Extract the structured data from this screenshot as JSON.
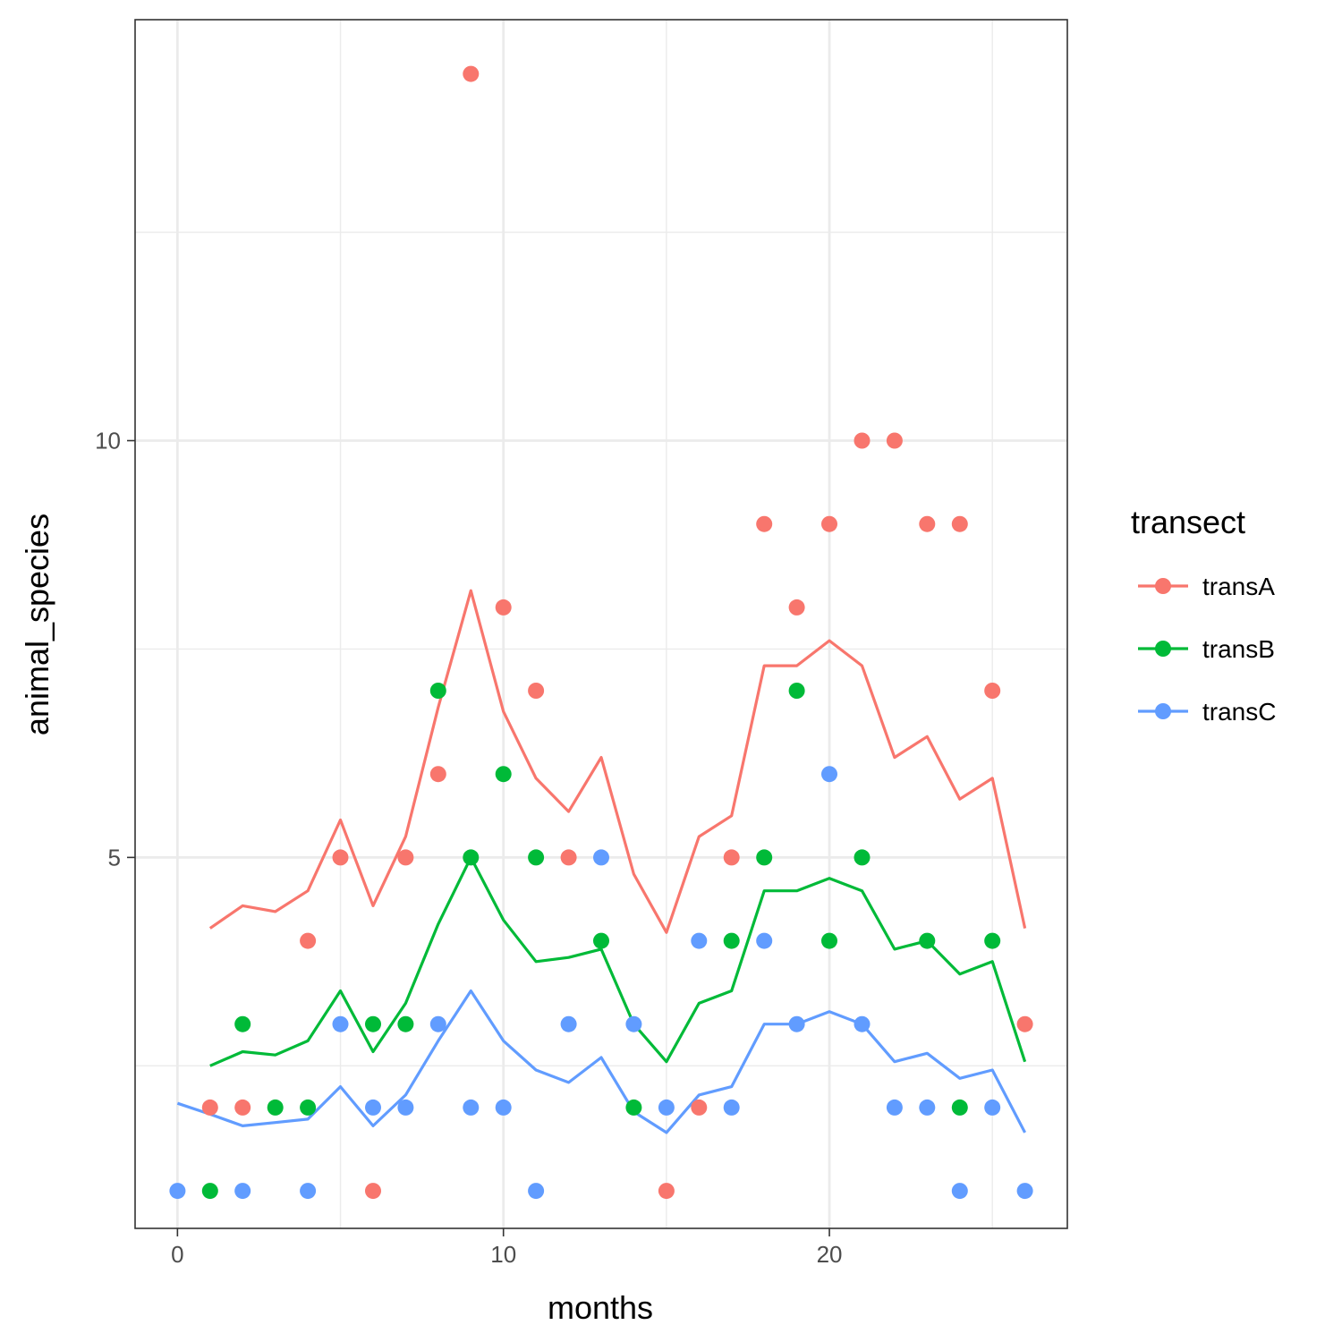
{
  "chart_data": {
    "type": "scatter",
    "title": "",
    "xlabel": "months",
    "ylabel": "animal_species",
    "xlim": [
      -1.3,
      27.3
    ],
    "ylim": [
      0.55,
      15.05
    ],
    "x_ticks": [
      0,
      10,
      20
    ],
    "x_tick_labels": [
      "0",
      "10",
      "20"
    ],
    "y_ticks": [
      5,
      10
    ],
    "y_tick_labels": [
      "5",
      "10"
    ],
    "x_minor": [
      5,
      15,
      25
    ],
    "y_minor": [
      2.5,
      7.5,
      12.5
    ],
    "grid": true,
    "legend": {
      "title": "transect",
      "position": "right"
    },
    "series": [
      {
        "name": "transA",
        "color": "#F8766D",
        "points": [
          [
            1,
            2
          ],
          [
            2,
            2
          ],
          [
            4,
            4
          ],
          [
            5,
            5
          ],
          [
            6,
            1
          ],
          [
            7,
            5
          ],
          [
            8,
            6
          ],
          [
            9,
            14.4
          ],
          [
            10,
            8
          ],
          [
            11,
            7
          ],
          [
            12,
            5
          ],
          [
            15,
            1
          ],
          [
            16,
            2
          ],
          [
            17,
            5
          ],
          [
            18,
            9
          ],
          [
            19,
            8
          ],
          [
            20,
            9
          ],
          [
            21,
            10
          ],
          [
            22,
            10
          ],
          [
            23,
            9
          ],
          [
            24,
            9
          ],
          [
            25,
            7
          ],
          [
            26,
            3
          ]
        ],
        "line": [
          [
            1,
            4.15
          ],
          [
            2,
            4.42
          ],
          [
            3,
            4.35
          ],
          [
            4,
            4.6
          ],
          [
            5,
            5.45
          ],
          [
            6,
            4.42
          ],
          [
            7,
            5.25
          ],
          [
            8,
            6.8
          ],
          [
            9,
            8.2
          ],
          [
            10,
            6.75
          ],
          [
            11,
            5.95
          ],
          [
            12,
            5.55
          ],
          [
            13,
            6.2
          ],
          [
            14,
            4.8
          ],
          [
            15,
            4.1
          ],
          [
            16,
            5.25
          ],
          [
            17,
            5.5
          ],
          [
            18,
            7.3
          ],
          [
            19,
            7.3
          ],
          [
            20,
            7.6
          ],
          [
            21,
            7.3
          ],
          [
            22,
            6.2
          ],
          [
            23,
            6.45
          ],
          [
            24,
            5.7
          ],
          [
            25,
            5.95
          ],
          [
            26,
            4.15
          ]
        ]
      },
      {
        "name": "transB",
        "color": "#00BA38",
        "points": [
          [
            1,
            1
          ],
          [
            2,
            3
          ],
          [
            3,
            2
          ],
          [
            4,
            2
          ],
          [
            6,
            3
          ],
          [
            7,
            3
          ],
          [
            8,
            7
          ],
          [
            9,
            5
          ],
          [
            10,
            6
          ],
          [
            11,
            5
          ],
          [
            13,
            4
          ],
          [
            14,
            2
          ],
          [
            17,
            4
          ],
          [
            18,
            5
          ],
          [
            19,
            7
          ],
          [
            20,
            4
          ],
          [
            21,
            5
          ],
          [
            23,
            4
          ],
          [
            24,
            2
          ],
          [
            25,
            4
          ]
        ],
        "line": [
          [
            1,
            2.5
          ],
          [
            2,
            2.67
          ],
          [
            3,
            2.63
          ],
          [
            4,
            2.8
          ],
          [
            5,
            3.4
          ],
          [
            6,
            2.67
          ],
          [
            7,
            3.25
          ],
          [
            8,
            4.2
          ],
          [
            9,
            5.0
          ],
          [
            10,
            4.25
          ],
          [
            11,
            3.75
          ],
          [
            12,
            3.8
          ],
          [
            13,
            3.9
          ],
          [
            14,
            3.0
          ],
          [
            15,
            2.55
          ],
          [
            16,
            3.25
          ],
          [
            17,
            3.4
          ],
          [
            18,
            4.6
          ],
          [
            19,
            4.6
          ],
          [
            20,
            4.75
          ],
          [
            21,
            4.6
          ],
          [
            22,
            3.9
          ],
          [
            23,
            4.0
          ],
          [
            24,
            3.6
          ],
          [
            25,
            3.75
          ],
          [
            26,
            2.55
          ]
        ]
      },
      {
        "name": "transC",
        "color": "#619CFF",
        "points": [
          [
            0,
            1
          ],
          [
            2,
            1
          ],
          [
            4,
            1
          ],
          [
            5,
            3
          ],
          [
            6,
            2
          ],
          [
            7,
            2
          ],
          [
            8,
            3
          ],
          [
            9,
            2
          ],
          [
            10,
            2
          ],
          [
            11,
            1
          ],
          [
            12,
            3
          ],
          [
            13,
            5
          ],
          [
            14,
            3
          ],
          [
            15,
            2
          ],
          [
            16,
            4
          ],
          [
            17,
            2
          ],
          [
            18,
            4
          ],
          [
            19,
            3
          ],
          [
            20,
            6
          ],
          [
            21,
            3
          ],
          [
            22,
            2
          ],
          [
            23,
            2
          ],
          [
            24,
            1
          ],
          [
            25,
            2
          ],
          [
            26,
            1
          ]
        ],
        "line": [
          [
            0,
            2.05
          ],
          [
            1,
            1.92
          ],
          [
            2,
            1.78
          ],
          [
            3,
            1.82
          ],
          [
            4,
            1.86
          ],
          [
            5,
            2.25
          ],
          [
            6,
            1.78
          ],
          [
            7,
            2.15
          ],
          [
            8,
            2.8
          ],
          [
            9,
            3.4
          ],
          [
            10,
            2.8
          ],
          [
            11,
            2.45
          ],
          [
            12,
            2.3
          ],
          [
            13,
            2.6
          ],
          [
            14,
            1.95
          ],
          [
            15,
            1.7
          ],
          [
            16,
            2.15
          ],
          [
            17,
            2.25
          ],
          [
            18,
            3.0
          ],
          [
            19,
            3.0
          ],
          [
            20,
            3.15
          ],
          [
            21,
            3.0
          ],
          [
            22,
            2.55
          ],
          [
            23,
            2.65
          ],
          [
            24,
            2.35
          ],
          [
            25,
            2.45
          ],
          [
            26,
            1.7
          ]
        ]
      }
    ]
  }
}
